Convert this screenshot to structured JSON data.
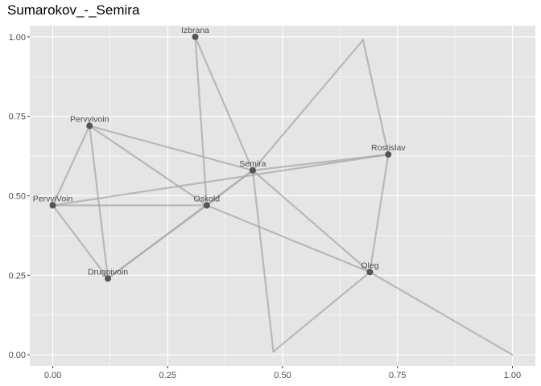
{
  "chart_data": {
    "type": "network",
    "title": "Sumarokov_-_Semira",
    "xlabel": "",
    "ylabel": "",
    "xlim": [
      -0.05,
      1.05
    ],
    "ylim": [
      -0.035,
      1.035
    ],
    "x_ticks": [
      0.0,
      0.25,
      0.5,
      0.75,
      1.0
    ],
    "x_tick_labels": [
      "0.00",
      "0.25",
      "0.50",
      "0.75",
      "1.00"
    ],
    "y_ticks": [
      0.0,
      0.25,
      0.5,
      0.75,
      1.0
    ],
    "y_tick_labels": [
      "0.00",
      "0.25",
      "0.50",
      "0.75",
      "1.00"
    ],
    "grid": true,
    "colors": {
      "panel": "#e5e5e5",
      "grid": "#ffffff",
      "edge": "#a8a8a8",
      "node": "#555555",
      "label": "#4d4d4d"
    },
    "nodes": [
      {
        "name": "Izbrana",
        "x": 0.31,
        "y": 1.0,
        "label": "Izbrana"
      },
      {
        "name": "Pervyivoin",
        "x": 0.08,
        "y": 0.72,
        "label": "Pervyivoin"
      },
      {
        "name": "Rostislav",
        "x": 0.73,
        "y": 0.63,
        "label": "Rostislav"
      },
      {
        "name": "Semira",
        "x": 0.435,
        "y": 0.58,
        "label": "Semira"
      },
      {
        "name": "PervyiVoin",
        "x": 0.0,
        "y": 0.47,
        "label": "PervyiVoin"
      },
      {
        "name": "Oskold",
        "x": 0.335,
        "y": 0.47,
        "label": "Oskold"
      },
      {
        "name": "Drugoivoin",
        "x": 0.12,
        "y": 0.24,
        "label": "Drugoivoin"
      },
      {
        "name": "Oleg",
        "x": 0.69,
        "y": 0.26,
        "label": "Oleg"
      },
      {
        "name": "unlabeled-1",
        "x": 0.675,
        "y": 0.99,
        "label": ""
      },
      {
        "name": "unlabeled-2",
        "x": 0.48,
        "y": 0.01,
        "label": ""
      },
      {
        "name": "unlabeled-3",
        "x": 1.0,
        "y": 0.0,
        "label": ""
      }
    ],
    "edges": [
      [
        "Izbrana",
        "Semira"
      ],
      [
        "Izbrana",
        "Oskold"
      ],
      [
        "Semira",
        "unlabeled-1"
      ],
      [
        "unlabeled-1",
        "Rostislav"
      ],
      [
        "Rostislav",
        "Oleg"
      ],
      [
        "Semira",
        "Rostislav"
      ],
      [
        "PervyiVoin",
        "Rostislav"
      ],
      [
        "Pervyivoin",
        "Semira"
      ],
      [
        "Pervyivoin",
        "Oskold"
      ],
      [
        "Pervyivoin",
        "PervyiVoin"
      ],
      [
        "Pervyivoin",
        "Drugoivoin"
      ],
      [
        "PervyiVoin",
        "Oskold"
      ],
      [
        "PervyiVoin",
        "Drugoivoin"
      ],
      [
        "Drugoivoin",
        "Oskold"
      ],
      [
        "Drugoivoin",
        "Semira"
      ],
      [
        "Oskold",
        "Semira"
      ],
      [
        "Oskold",
        "Oleg"
      ],
      [
        "Semira",
        "Oleg"
      ],
      [
        "Semira",
        "unlabeled-2"
      ],
      [
        "unlabeled-2",
        "Oleg"
      ],
      [
        "Oleg",
        "unlabeled-3"
      ]
    ]
  }
}
